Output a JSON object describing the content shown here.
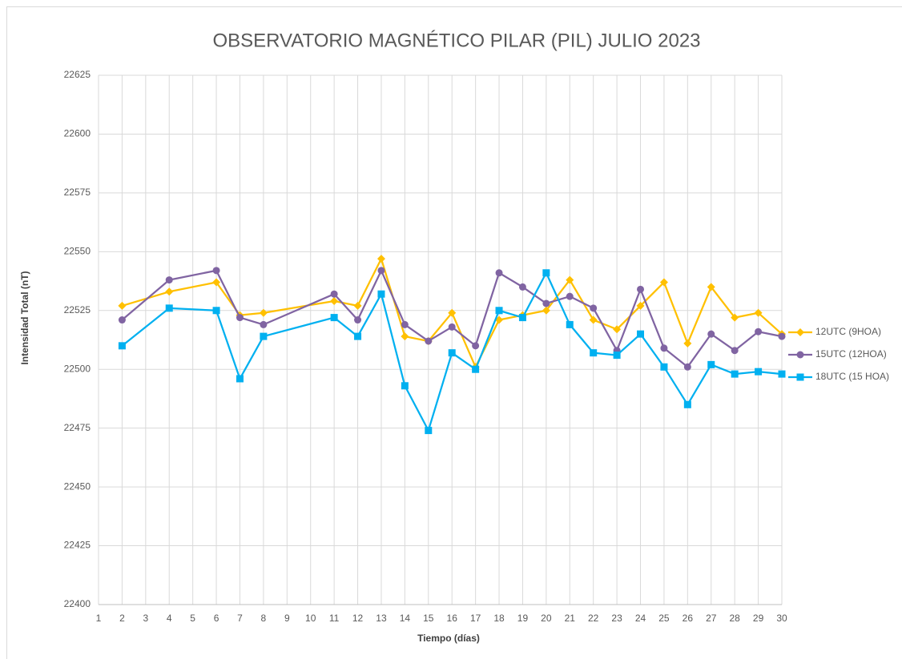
{
  "chart_data": {
    "type": "line",
    "title": "OBSERVATORIO MAGNÉTICO PILAR (PIL) JULIO 2023",
    "x_label": "Tiempo (días)",
    "y_label": "Intensidad Total (nT)",
    "x": [
      2,
      4,
      6,
      7,
      8,
      11,
      12,
      13,
      14,
      15,
      16,
      17,
      18,
      19,
      20,
      21,
      22,
      23,
      24,
      25,
      26,
      27,
      28,
      29,
      30
    ],
    "series": [
      {
        "name": "12UTC (9HOA)",
        "color": "#FFC000",
        "marker": "diamond",
        "values": [
          22527,
          22533,
          22537,
          22523,
          22524,
          22529,
          22527,
          22547,
          22514,
          22512,
          22524,
          22501,
          22521,
          22523,
          22525,
          22538,
          22521,
          22517,
          22527,
          22537,
          22511,
          22535,
          22522,
          22524,
          22515
        ]
      },
      {
        "name": "15UTC (12HOA)",
        "color": "#8064A2",
        "marker": "circle",
        "values": [
          22521,
          22538,
          22542,
          22522,
          22519,
          22532,
          22521,
          22542,
          22519,
          22512,
          22518,
          22510,
          22541,
          22535,
          22528,
          22531,
          22526,
          22508,
          22534,
          22509,
          22501,
          22515,
          22508,
          22516,
          22514
        ]
      },
      {
        "name": "18UTC (15 HOA)",
        "color": "#00B0F0",
        "marker": "square",
        "values": [
          22510,
          22526,
          22525,
          22496,
          22514,
          22522,
          22514,
          22532,
          22493,
          22474,
          22507,
          22500,
          22525,
          22522,
          22541,
          22519,
          22507,
          22506,
          22515,
          22501,
          22485,
          22502,
          22498,
          22499,
          22498
        ]
      }
    ],
    "xlim": [
      1,
      30
    ],
    "xticks": [
      1,
      2,
      3,
      4,
      5,
      6,
      7,
      8,
      9,
      10,
      11,
      12,
      13,
      14,
      15,
      16,
      17,
      18,
      19,
      20,
      21,
      22,
      23,
      24,
      25,
      26,
      27,
      28,
      29,
      30
    ],
    "ylim": [
      22400,
      22625
    ],
    "yticks": [
      22400,
      22425,
      22450,
      22475,
      22500,
      22525,
      22550,
      22575,
      22600,
      22625
    ],
    "grid": true,
    "legend": "right"
  }
}
